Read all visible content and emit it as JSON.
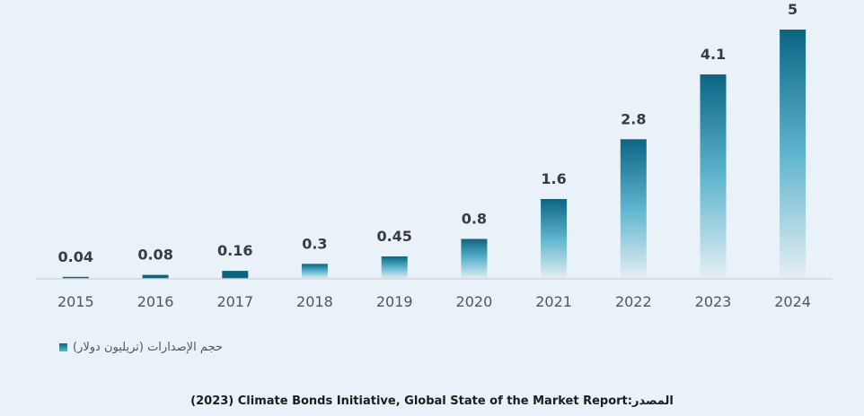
{
  "chart_data": {
    "type": "bar",
    "title": "",
    "xlabel": "",
    "ylabel": "",
    "categories": [
      "2015",
      "2016",
      "2017",
      "2018",
      "2019",
      "2020",
      "2021",
      "2022",
      "2023",
      "2024"
    ],
    "series": [
      {
        "name": "حجم الإصدارات (تريليون دولار)",
        "values": [
          0.04,
          0.08,
          0.16,
          0.3,
          0.45,
          0.8,
          1.6,
          2.8,
          4.1,
          5
        ],
        "labels": [
          "0.04",
          "0.08",
          "0.16",
          "0.3",
          "0.45",
          "0.8",
          "1.6",
          "2.8",
          "4.1",
          "5"
        ]
      }
    ],
    "ylim": [
      0,
      5
    ],
    "grid": false,
    "legend_position": "bottom-left",
    "colors": {
      "bar_top": "#0a6584",
      "bar_mid": "#5fb5cf",
      "bar_bottom": "#e6eff3",
      "axis": "#d9d3d3"
    }
  },
  "legend": {
    "label": "حجم الإصدارات (تريليون دولار)"
  },
  "source": {
    "text": "(2023) Climate Bonds Initiative, Global State of the Market Report:المصدر"
  }
}
